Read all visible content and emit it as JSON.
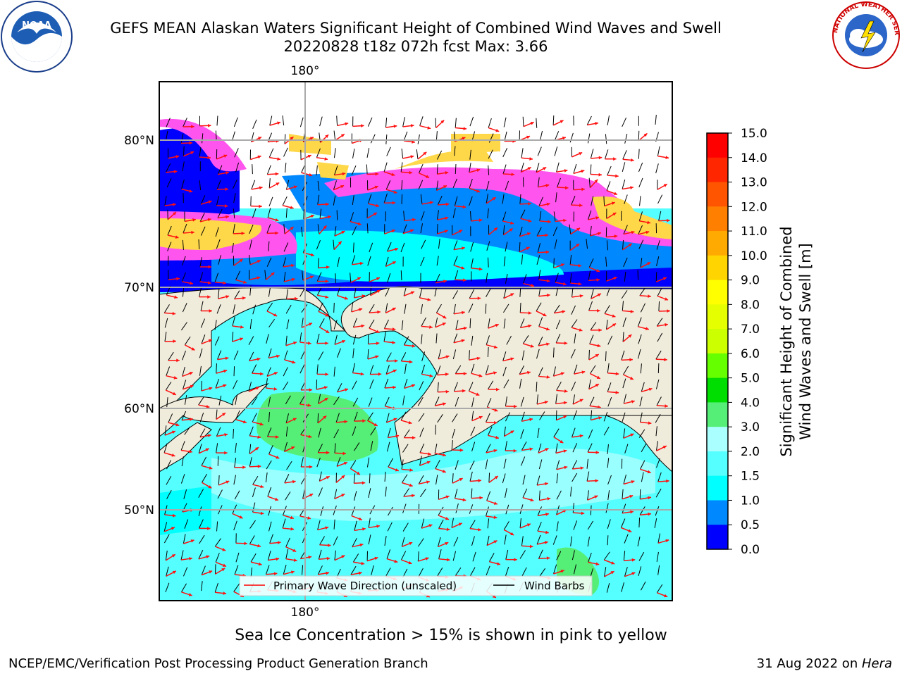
{
  "header": {
    "title_line1": "GEFS MEAN Alaskan Waters Significant Height of Combined Wind Waves and Swell",
    "title_line2": "20220828 t18z 072h fcst   Max: 3.66"
  },
  "logos": {
    "left": {
      "name": "noaa-logo",
      "text": "NOAA"
    },
    "right": {
      "name": "nws-logo",
      "text": "NATIONAL WEATHER SERVICE"
    }
  },
  "map": {
    "lon_label_top": "180°",
    "lon_label_bottom": "180°",
    "lat_labels": [
      "80°N",
      "70°N",
      "60°N",
      "50°N"
    ],
    "land_color": "#efecdc",
    "legend": {
      "wave_dir": "Primary Wave Direction (unscaled)",
      "wind_barbs": "Wind Barbs"
    }
  },
  "colorbar": {
    "label_line1": "Significant Height of Combined",
    "label_line2": "Wind Waves and Swell [m]",
    "levels": [
      "15.0",
      "14.0",
      "13.0",
      "12.0",
      "11.0",
      "10.0",
      "9.0",
      "8.0",
      "7.0",
      "6.0",
      "5.0",
      "4.0",
      "3.0",
      "2.0",
      "1.5",
      "1.0",
      "0.5",
      "0.0"
    ],
    "colors": [
      "#ff0000",
      "#ff2600",
      "#ff5500",
      "#ff8000",
      "#ffaa00",
      "#ffd400",
      "#ffff00",
      "#e6ff00",
      "#ccff00",
      "#66ff00",
      "#00dd00",
      "#55ee77",
      "#aaffff",
      "#55ffff",
      "#00ffff",
      "#0088ff",
      "#0000ff"
    ]
  },
  "note": "Sea Ice Concentration > 15% is shown in pink to yellow",
  "footer": {
    "left": "NCEP/EMC/Verification Post Processing Product Generation Branch",
    "right_date": "31 Aug 2022 on ",
    "right_system": "Hera"
  }
}
